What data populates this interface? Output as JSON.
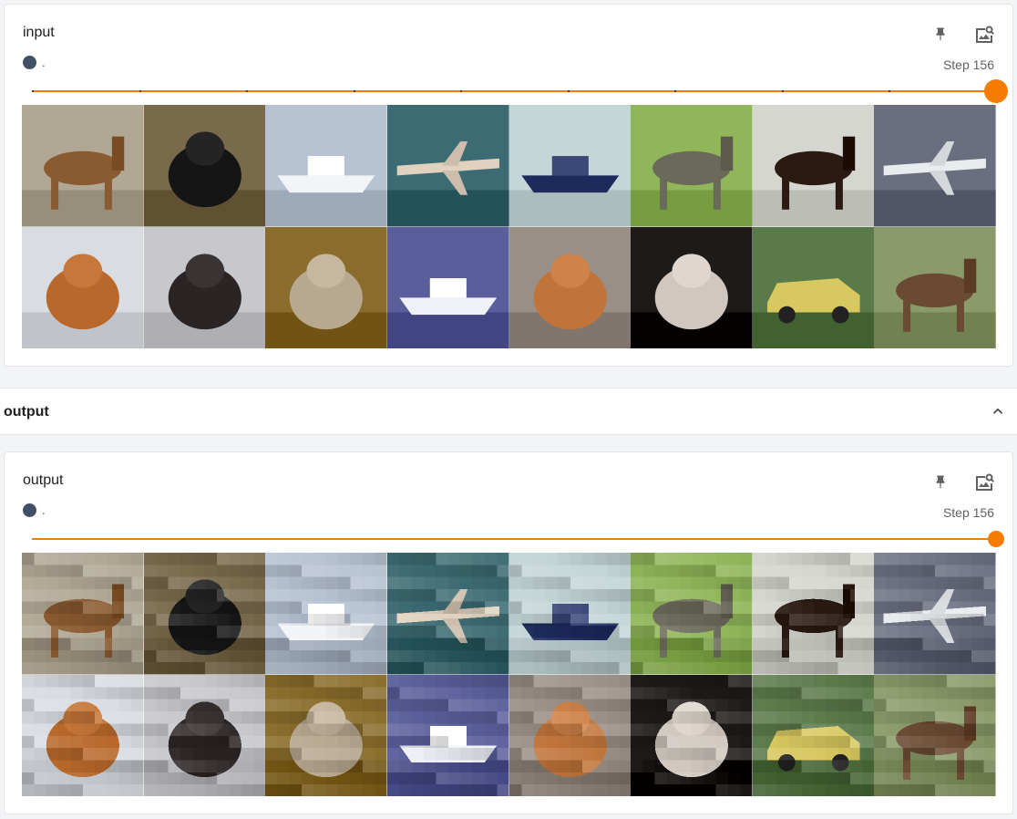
{
  "cards": [
    {
      "id": "input",
      "title": "input",
      "run_label": ".",
      "run_color": "#425066",
      "step_label": "Step 156",
      "slider_value": 1.0,
      "slider_ticks": 9,
      "pixelated": false
    },
    {
      "id": "output",
      "title": "output",
      "run_label": ".",
      "run_color": "#425066",
      "step_label": "Step 156",
      "slider_value": 1.0,
      "slider_ticks": 0,
      "pixelated": true
    }
  ],
  "group_header": {
    "title": "output",
    "collapse_icon": "chevron-up-icon"
  },
  "accent_color": "#f57c00",
  "image_tiles": [
    {
      "subject": "horse-rider",
      "bg": "#b0a894",
      "fg": "#8a5a30"
    },
    {
      "subject": "dog",
      "bg": "#7a6a4c",
      "fg": "#151515"
    },
    {
      "subject": "boat",
      "bg": "#b7c3d3",
      "fg": "#f2f4f7"
    },
    {
      "subject": "airplane",
      "bg": "#3d6b73",
      "fg": "#e0d2bf"
    },
    {
      "subject": "ship",
      "bg": "#c4d6d6",
      "fg": "#1c2a5c"
    },
    {
      "subject": "deer",
      "bg": "#8fb659",
      "fg": "#6b6a5a"
    },
    {
      "subject": "horse",
      "bg": "#d6d6d0",
      "fg": "#2a1a12"
    },
    {
      "subject": "airplane",
      "bg": "#6a6f80",
      "fg": "#e9ecef"
    },
    {
      "subject": "cat",
      "bg": "#d9dde2",
      "fg": "#b8682a"
    },
    {
      "subject": "dog",
      "bg": "#c8c7cc",
      "fg": "#2b2424"
    },
    {
      "subject": "cat",
      "bg": "#8a6d2c",
      "fg": "#b8a890"
    },
    {
      "subject": "boat",
      "bg": "#5a5e9a",
      "fg": "#eef2f7"
    },
    {
      "subject": "dog",
      "bg": "#9a8f86",
      "fg": "#c0743a"
    },
    {
      "subject": "dog",
      "bg": "#1e1a18",
      "fg": "#d0c8c0"
    },
    {
      "subject": "car",
      "bg": "#5a7a4a",
      "fg": "#d8c860"
    },
    {
      "subject": "horse",
      "bg": "#8a9a6a",
      "fg": "#6a4a32"
    }
  ]
}
